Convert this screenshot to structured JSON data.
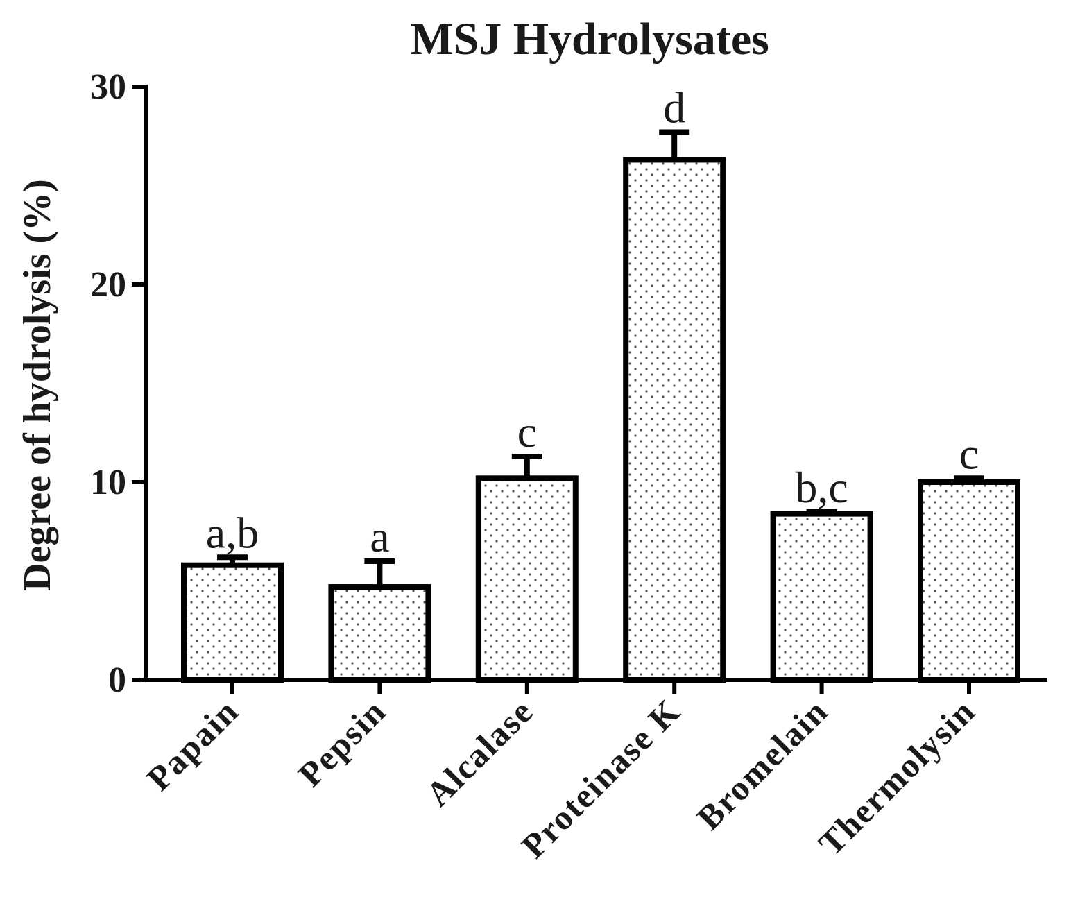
{
  "chart_data": {
    "type": "bar",
    "title": "MSJ Hydrolysates",
    "ylabel": "Degree of hydrolysis (%)",
    "xlabel": "",
    "ylim": [
      0,
      30
    ],
    "yticks": [
      0,
      10,
      20,
      30
    ],
    "grid": false,
    "categories": [
      "Papain",
      "Pepsin",
      "Alcalase",
      "Proteinase K",
      "Bromelain",
      "Thermolysin"
    ],
    "values": [
      5.8,
      4.7,
      10.2,
      26.3,
      8.4,
      10.0
    ],
    "errors": [
      0.4,
      1.3,
      1.1,
      1.4,
      0.1,
      0.2
    ],
    "significance_labels": [
      "a,b",
      "a",
      "c",
      "d",
      "b,c",
      "c"
    ],
    "bar_fill": "#ffffff",
    "bar_stroke": "#000000"
  }
}
